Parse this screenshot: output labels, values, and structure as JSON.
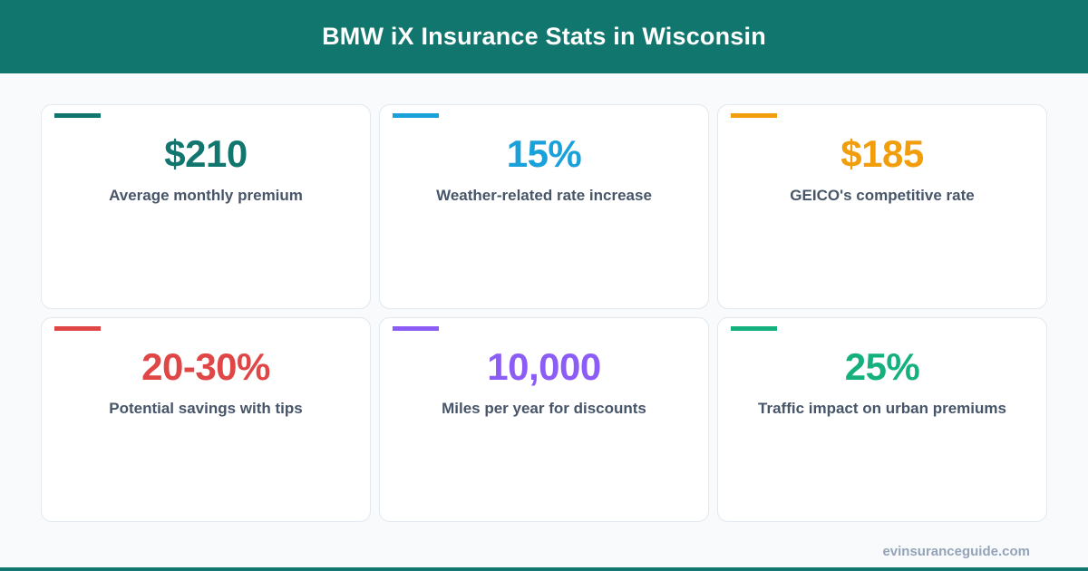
{
  "header": {
    "title": "BMW iX Insurance Stats in Wisconsin",
    "background": "#11766d"
  },
  "cards": [
    {
      "value": "$210",
      "label": "Average monthly premium",
      "color": "#11766d"
    },
    {
      "value": "15%",
      "label": "Weather-related rate increase",
      "color": "#1ba1d9"
    },
    {
      "value": "$185",
      "label": "GEICO's competitive rate",
      "color": "#f29e0c"
    },
    {
      "value": "20-30%",
      "label": "Potential savings with tips",
      "color": "#e04646"
    },
    {
      "value": "10,000",
      "label": "Miles per year for discounts",
      "color": "#8b5cf6"
    },
    {
      "value": "25%",
      "label": "Traffic impact on urban premiums",
      "color": "#14b17e"
    }
  ],
  "footer": {
    "url": "evinsuranceguide.com"
  }
}
